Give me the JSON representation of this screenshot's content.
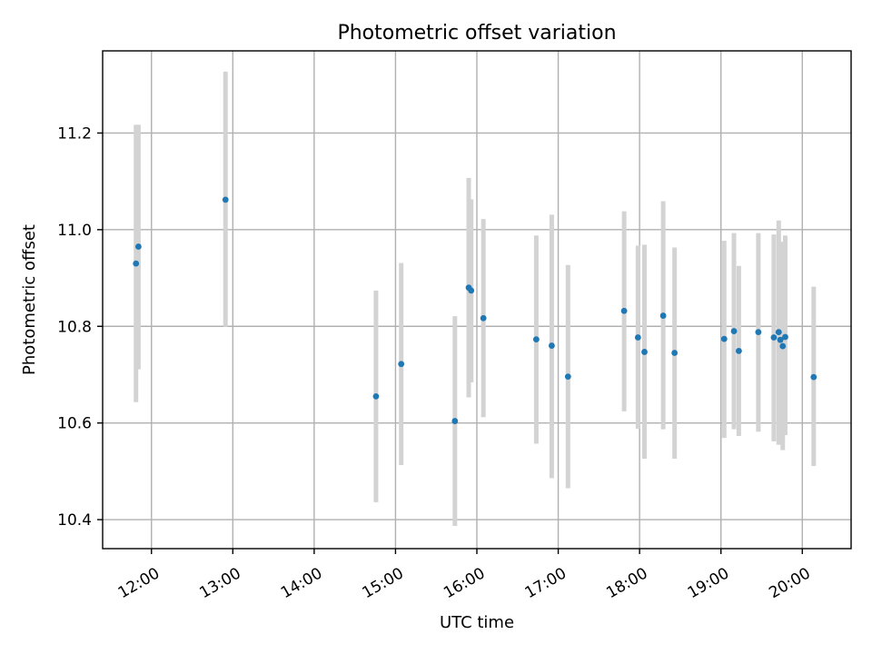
{
  "chart_data": {
    "type": "scatter",
    "title": "Photometric offset variation",
    "xlabel": "UTC time",
    "ylabel": "Photometric offset",
    "x_unit": "hours UTC",
    "xlim": [
      11.4,
      20.6
    ],
    "ylim": [
      10.34,
      11.37
    ],
    "x_ticks": [
      {
        "value": 12,
        "label": "12:00"
      },
      {
        "value": 13,
        "label": "13:00"
      },
      {
        "value": 14,
        "label": "14:00"
      },
      {
        "value": 15,
        "label": "15:00"
      },
      {
        "value": 16,
        "label": "16:00"
      },
      {
        "value": 17,
        "label": "17:00"
      },
      {
        "value": 18,
        "label": "18:00"
      },
      {
        "value": 19,
        "label": "19:00"
      },
      {
        "value": 20,
        "label": "20:00"
      }
    ],
    "y_ticks": [
      {
        "value": 10.4,
        "label": "10.4"
      },
      {
        "value": 10.6,
        "label": "10.6"
      },
      {
        "value": 10.8,
        "label": "10.8"
      },
      {
        "value": 11.0,
        "label": "11.0"
      },
      {
        "value": 11.2,
        "label": "11.2"
      }
    ],
    "grid": true,
    "marker_color": "#1f77b4",
    "errorbar_color": "#d3d3d3",
    "points": [
      {
        "x": 11.81,
        "y": 10.93,
        "lo": 10.643,
        "hi": 11.217
      },
      {
        "x": 11.84,
        "y": 10.965,
        "lo": 10.711,
        "hi": 11.217
      },
      {
        "x": 12.91,
        "y": 11.062,
        "lo": 10.799,
        "hi": 11.327
      },
      {
        "x": 14.76,
        "y": 10.655,
        "lo": 10.436,
        "hi": 10.874
      },
      {
        "x": 15.07,
        "y": 10.722,
        "lo": 10.513,
        "hi": 10.931
      },
      {
        "x": 15.73,
        "y": 10.604,
        "lo": 10.387,
        "hi": 10.821
      },
      {
        "x": 15.9,
        "y": 10.88,
        "lo": 10.653,
        "hi": 11.107
      },
      {
        "x": 15.93,
        "y": 10.874,
        "lo": 10.684,
        "hi": 11.063
      },
      {
        "x": 16.08,
        "y": 10.817,
        "lo": 10.612,
        "hi": 11.022
      },
      {
        "x": 16.73,
        "y": 10.773,
        "lo": 10.557,
        "hi": 10.988
      },
      {
        "x": 16.92,
        "y": 10.76,
        "lo": 10.486,
        "hi": 11.031
      },
      {
        "x": 17.12,
        "y": 10.696,
        "lo": 10.465,
        "hi": 10.927
      },
      {
        "x": 17.81,
        "y": 10.832,
        "lo": 10.624,
        "hi": 11.038
      },
      {
        "x": 17.98,
        "y": 10.777,
        "lo": 10.588,
        "hi": 10.967
      },
      {
        "x": 18.06,
        "y": 10.747,
        "lo": 10.526,
        "hi": 10.969
      },
      {
        "x": 18.29,
        "y": 10.822,
        "lo": 10.587,
        "hi": 11.059
      },
      {
        "x": 18.43,
        "y": 10.745,
        "lo": 10.526,
        "hi": 10.963
      },
      {
        "x": 19.04,
        "y": 10.774,
        "lo": 10.569,
        "hi": 10.977
      },
      {
        "x": 19.16,
        "y": 10.79,
        "lo": 10.587,
        "hi": 10.993
      },
      {
        "x": 19.22,
        "y": 10.749,
        "lo": 10.573,
        "hi": 10.925
      },
      {
        "x": 19.46,
        "y": 10.788,
        "lo": 10.582,
        "hi": 10.993
      },
      {
        "x": 19.65,
        "y": 10.777,
        "lo": 10.562,
        "hi": 10.99
      },
      {
        "x": 19.71,
        "y": 10.788,
        "lo": 10.555,
        "hi": 11.019
      },
      {
        "x": 19.73,
        "y": 10.772,
        "lo": 10.571,
        "hi": 10.974
      },
      {
        "x": 19.76,
        "y": 10.759,
        "lo": 10.544,
        "hi": 10.975
      },
      {
        "x": 19.79,
        "y": 10.778,
        "lo": 10.575,
        "hi": 10.988
      },
      {
        "x": 20.14,
        "y": 10.695,
        "lo": 10.511,
        "hi": 10.882
      }
    ]
  }
}
